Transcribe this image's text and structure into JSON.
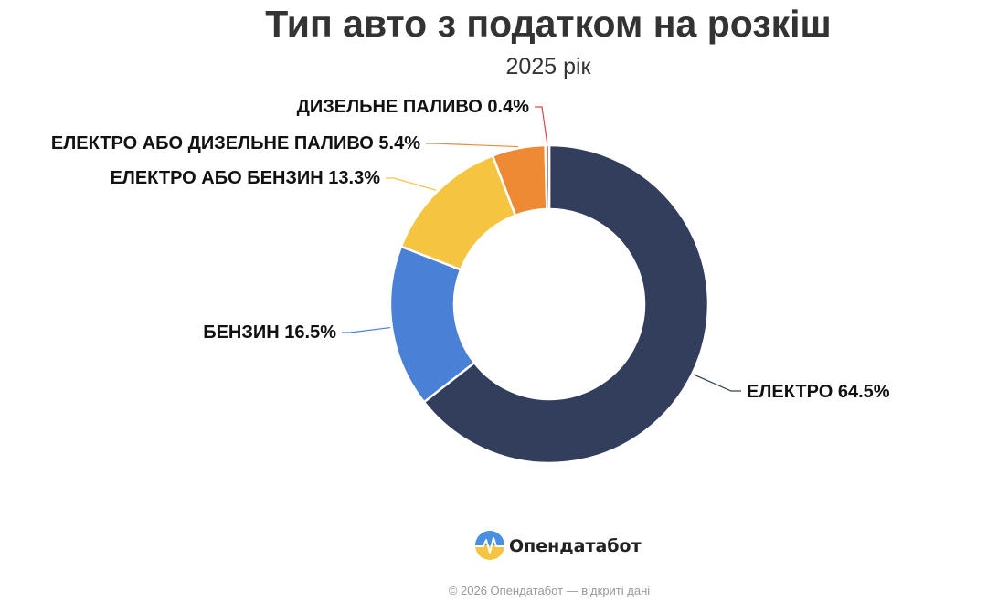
{
  "chart_data": {
    "type": "pie",
    "variant": "donut",
    "title": "Тип авто з податком на розкіш",
    "subtitle": "2025 рік",
    "slices": [
      {
        "label": "ЕЛЕКТРО 64.5%",
        "value": 64.5,
        "color": "#323e5c"
      },
      {
        "label": "БЕНЗИН 16.5%",
        "value": 16.5,
        "color": "#4a80d6"
      },
      {
        "label": "ЕЛЕКТРО АБО БЕНЗИН 13.3%",
        "value": 13.3,
        "color": "#f5c542"
      },
      {
        "label": "ЕЛЕКТРО АБО ДИЗЕЛЬНЕ ПАЛИВО 5.4%",
        "value": 5.4,
        "color": "#ee8a33"
      },
      {
        "label": "ДИЗЕЛЬНЕ ПАЛИВО 0.4%",
        "value": 0.4,
        "color": "#d94848"
      }
    ],
    "start_angle_deg": 0,
    "direction": "clockwise",
    "legend": "none",
    "labels": "outside-with-leader-lines"
  },
  "brand": {
    "name": "Опендатабот",
    "logo_icon": "opendatabot-logo-icon"
  },
  "footer": {
    "copyright": "© 2026 Опендатабот — відкриті дані"
  }
}
